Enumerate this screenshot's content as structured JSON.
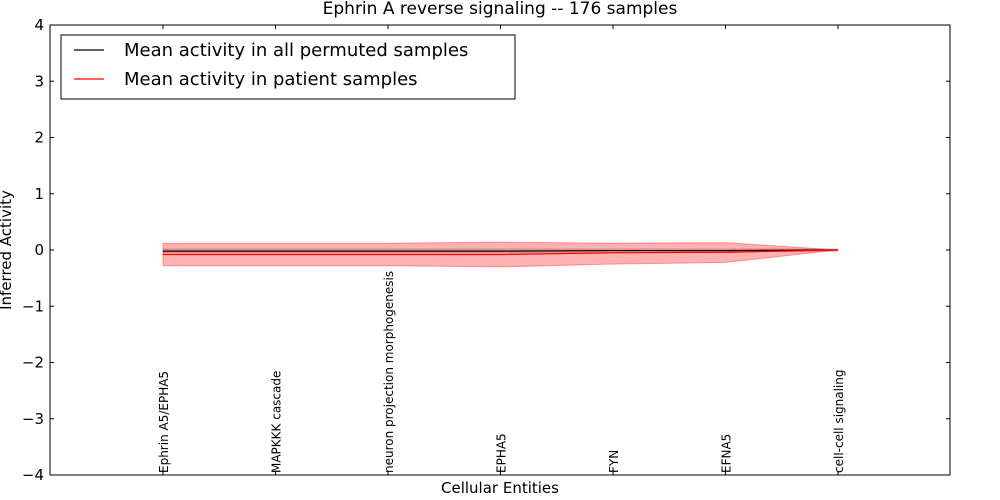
{
  "chart_data": {
    "type": "line",
    "title": "Ephrin A  reverse signaling -- 176 samples",
    "xlabel": "Cellular Entities",
    "ylabel": "Inferred Activity",
    "ylim": [
      -4,
      4
    ],
    "yticks": [
      4,
      3,
      2,
      1,
      0,
      -1,
      -2,
      -3,
      -4
    ],
    "ytick_labels": [
      "4",
      "3",
      "2",
      "1",
      "0",
      "−1",
      "−2",
      "−3",
      "−4"
    ],
    "categories": [
      "Ephrin A5/EPHA5",
      "MAPKKK cascade",
      "neuron projection morphogenesis",
      "EPHA5",
      "FYN",
      "EFNA5",
      "cell-cell signaling"
    ],
    "grid": false,
    "legend_position": "top-left",
    "series": [
      {
        "name": "Mean activity in all permuted samples",
        "color": "#000000",
        "values": [
          -0.02,
          -0.02,
          -0.02,
          -0.02,
          -0.01,
          -0.01,
          0.0
        ],
        "band_lower": [
          -0.05,
          -0.05,
          -0.05,
          -0.05,
          -0.04,
          -0.03,
          -0.02
        ],
        "band_upper": [
          0.02,
          0.02,
          0.02,
          0.02,
          0.02,
          0.02,
          0.02
        ],
        "band_color": "#808080"
      },
      {
        "name": "Mean activity in patient samples",
        "color": "#ff0000",
        "values": [
          -0.08,
          -0.08,
          -0.08,
          -0.08,
          -0.05,
          -0.04,
          0.0
        ],
        "band_lower": [
          -0.28,
          -0.28,
          -0.28,
          -0.3,
          -0.25,
          -0.22,
          0.0
        ],
        "band_upper": [
          0.12,
          0.12,
          0.12,
          0.14,
          0.12,
          0.13,
          0.0
        ],
        "band_color": "#ff0000"
      }
    ]
  }
}
